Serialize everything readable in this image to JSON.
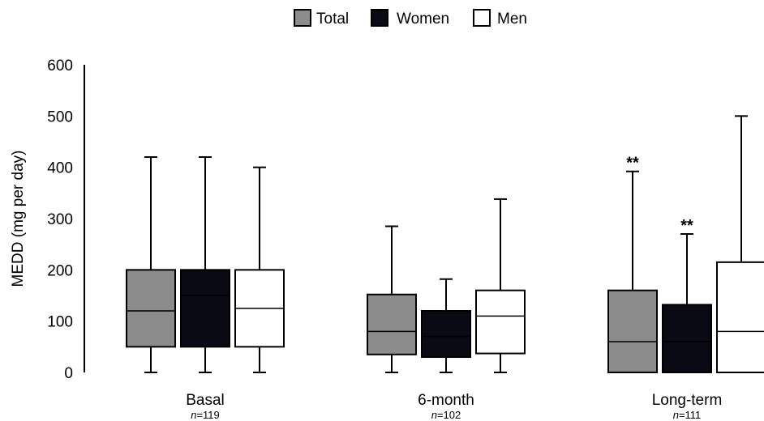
{
  "chart_data": {
    "type": "box",
    "ylabel": "MEDD (mg per day)",
    "ylim": [
      0,
      600
    ],
    "yticks": [
      "0",
      "100",
      "200",
      "300",
      "400",
      "500",
      "600"
    ],
    "legend": {
      "position": "top-center",
      "entries": [
        {
          "name": "Total",
          "color": "#8c8c8c"
        },
        {
          "name": "Women",
          "color": "#0a0a14"
        },
        {
          "name": "Men",
          "color": "#ffffff"
        }
      ]
    },
    "groups": [
      {
        "label": "Basal",
        "n_prefix": "n",
        "n_value": "=119",
        "boxes": [
          {
            "series": "Total",
            "min": 0,
            "q1": 50,
            "median": 120,
            "q3": 200,
            "max": 420,
            "annotation": ""
          },
          {
            "series": "Women",
            "min": 0,
            "q1": 50,
            "median": 150,
            "q3": 200,
            "max": 420,
            "annotation": ""
          },
          {
            "series": "Men",
            "min": 0,
            "q1": 50,
            "median": 125,
            "q3": 200,
            "max": 400,
            "annotation": ""
          }
        ]
      },
      {
        "label": "6-month",
        "n_prefix": "n",
        "n_value": "=102",
        "boxes": [
          {
            "series": "Total",
            "min": 0,
            "q1": 35,
            "median": 80,
            "q3": 152,
            "max": 285,
            "annotation": ""
          },
          {
            "series": "Women",
            "min": 0,
            "q1": 30,
            "median": 70,
            "q3": 120,
            "max": 182,
            "annotation": ""
          },
          {
            "series": "Men",
            "min": 0,
            "q1": 37,
            "median": 110,
            "q3": 160,
            "max": 338,
            "annotation": ""
          }
        ]
      },
      {
        "label": "Long-term",
        "n_prefix": "n",
        "n_value": "=111",
        "boxes": [
          {
            "series": "Total",
            "min": 0,
            "q1": 0,
            "median": 60,
            "q3": 160,
            "max": 392,
            "annotation": "**"
          },
          {
            "series": "Women",
            "min": 0,
            "q1": 0,
            "median": 60,
            "q3": 132,
            "max": 270,
            "annotation": "**"
          },
          {
            "series": "Men",
            "min": 0,
            "q1": 0,
            "median": 80,
            "q3": 215,
            "max": 500,
            "annotation": ""
          }
        ]
      }
    ]
  }
}
